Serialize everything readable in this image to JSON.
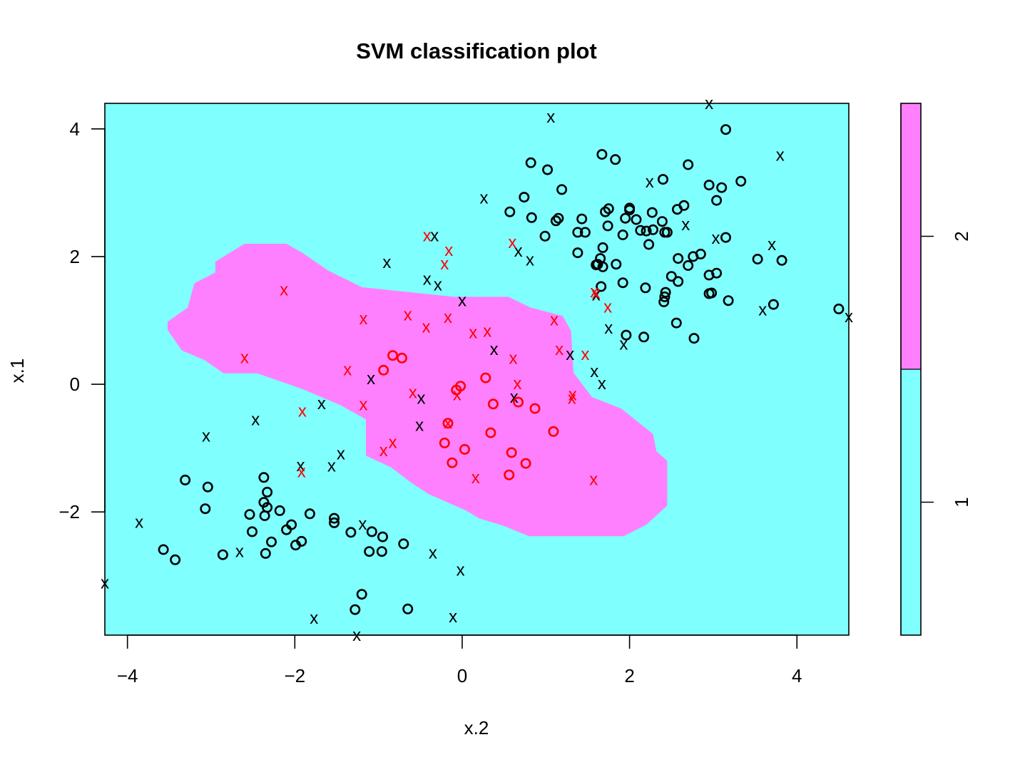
{
  "chart_data": {
    "type": "scatter",
    "title": "SVM classification plot",
    "xlabel": "x.2",
    "ylabel": "x.1",
    "xlim": [
      -4.27,
      4.62
    ],
    "ylim": [
      -3.93,
      4.4
    ],
    "x_ticks": [
      -4,
      -2,
      0,
      2,
      4
    ],
    "y_ticks": [
      -2,
      0,
      2,
      4
    ],
    "x_tick_labels": [
      "−4",
      "−2",
      "0",
      "2",
      "4"
    ],
    "y_tick_labels": [
      "−2",
      "0",
      "2",
      "4"
    ],
    "colors": {
      "class_1_region": "#80FFFF",
      "class_2_region": "#FF80FF",
      "points_class_1": "#000000",
      "points_class_2": "#FF0000"
    },
    "colorbar": {
      "levels": [
        "1",
        "2"
      ],
      "split_fraction": 0.5
    },
    "region_class_2_polygon": [
      [
        -2.6,
        2.2
      ],
      [
        -2.1,
        2.2
      ],
      [
        -1.9,
        2.05
      ],
      [
        -1.6,
        1.78
      ],
      [
        -1.2,
        1.52
      ],
      [
        -0.1,
        1.37
      ],
      [
        0.55,
        1.37
      ],
      [
        0.82,
        1.2
      ],
      [
        1.2,
        1.07
      ],
      [
        1.3,
        0.84
      ],
      [
        1.33,
        0.18
      ],
      [
        1.55,
        -0.2
      ],
      [
        1.9,
        -0.38
      ],
      [
        2.28,
        -0.78
      ],
      [
        2.32,
        -1.05
      ],
      [
        2.45,
        -1.2
      ],
      [
        2.45,
        -1.9
      ],
      [
        2.2,
        -2.2
      ],
      [
        1.93,
        -2.38
      ],
      [
        0.8,
        -2.38
      ],
      [
        0.5,
        -2.22
      ],
      [
        0.2,
        -2.1
      ],
      [
        0.05,
        -1.98
      ],
      [
        -0.4,
        -1.72
      ],
      [
        -0.6,
        -1.55
      ],
      [
        -0.85,
        -1.3
      ],
      [
        -1.15,
        -1.12
      ],
      [
        -1.15,
        -0.55
      ],
      [
        -1.45,
        -0.33
      ],
      [
        -1.9,
        -0.08
      ],
      [
        -2.2,
        0.06
      ],
      [
        -2.45,
        0.17
      ],
      [
        -2.85,
        0.17
      ],
      [
        -3.08,
        0.38
      ],
      [
        -3.35,
        0.53
      ],
      [
        -3.52,
        0.85
      ],
      [
        -3.52,
        0.98
      ],
      [
        -3.28,
        1.2
      ],
      [
        -3.2,
        1.58
      ],
      [
        -2.95,
        1.75
      ],
      [
        -2.95,
        1.92
      ]
    ],
    "series": [
      {
        "name": "1",
        "points_o": [
          [
            0.82,
            3.47
          ],
          [
            1.02,
            3.36
          ],
          [
            1.67,
            3.6
          ],
          [
            1.83,
            3.52
          ],
          [
            2.4,
            3.21
          ],
          [
            2.7,
            3.44
          ],
          [
            3.15,
            3.99
          ],
          [
            0.74,
            2.93
          ],
          [
            1.19,
            3.05
          ],
          [
            0.57,
            2.7
          ],
          [
            0.83,
            2.61
          ],
          [
            1.12,
            2.56
          ],
          [
            1.15,
            2.6
          ],
          [
            1.38,
            2.38
          ],
          [
            1.43,
            2.59
          ],
          [
            1.47,
            2.38
          ],
          [
            1.75,
            2.75
          ],
          [
            1.74,
            2.48
          ],
          [
            1.95,
            2.6
          ],
          [
            2.0,
            2.73
          ],
          [
            2.0,
            2.76
          ],
          [
            2.08,
            2.58
          ],
          [
            2.13,
            2.41
          ],
          [
            2.27,
            2.69
          ],
          [
            2.28,
            2.42
          ],
          [
            2.2,
            2.4
          ],
          [
            2.23,
            2.19
          ],
          [
            2.39,
            2.55
          ],
          [
            2.42,
            2.38
          ],
          [
            2.45,
            2.38
          ],
          [
            2.57,
            2.74
          ],
          [
            2.65,
            2.8
          ],
          [
            2.95,
            3.12
          ],
          [
            3.04,
            2.88
          ],
          [
            3.1,
            3.08
          ],
          [
            3.33,
            3.18
          ],
          [
            3.15,
            2.3
          ],
          [
            0.99,
            2.32
          ],
          [
            1.71,
            2.7
          ],
          [
            1.38,
            2.06
          ],
          [
            1.68,
            2.14
          ],
          [
            1.65,
            1.97
          ],
          [
            1.62,
            1.88
          ],
          [
            1.6,
            1.87
          ],
          [
            1.68,
            1.84
          ],
          [
            1.84,
            1.88
          ],
          [
            1.66,
            1.53
          ],
          [
            1.92,
            1.59
          ],
          [
            1.92,
            2.34
          ],
          [
            2.58,
            1.97
          ],
          [
            2.76,
            2.0
          ],
          [
            2.85,
            2.04
          ],
          [
            2.7,
            1.86
          ],
          [
            2.5,
            1.69
          ],
          [
            2.58,
            1.61
          ],
          [
            2.95,
            1.71
          ],
          [
            3.04,
            1.74
          ],
          [
            2.19,
            1.51
          ],
          [
            2.43,
            1.44
          ],
          [
            2.42,
            1.37
          ],
          [
            2.41,
            1.29
          ],
          [
            2.95,
            1.42
          ],
          [
            2.98,
            1.43
          ],
          [
            3.18,
            1.31
          ],
          [
            3.53,
            1.96
          ],
          [
            3.82,
            1.94
          ],
          [
            3.72,
            1.25
          ],
          [
            4.5,
            1.18
          ],
          [
            1.96,
            0.77
          ],
          [
            2.17,
            0.74
          ],
          [
            2.56,
            0.96
          ],
          [
            2.77,
            0.72
          ],
          [
            -3.31,
            -1.5
          ],
          [
            -3.04,
            -1.61
          ],
          [
            -3.07,
            -1.95
          ],
          [
            -2.37,
            -1.46
          ],
          [
            -2.33,
            -1.69
          ],
          [
            -2.37,
            -1.85
          ],
          [
            -2.33,
            -1.93
          ],
          [
            -2.18,
            -1.98
          ],
          [
            -2.36,
            -2.06
          ],
          [
            -2.54,
            -2.04
          ],
          [
            -2.51,
            -2.31
          ],
          [
            -2.28,
            -2.47
          ],
          [
            -2.35,
            -2.65
          ],
          [
            -2.04,
            -2.2
          ],
          [
            -2.1,
            -2.28
          ],
          [
            -1.82,
            -2.03
          ],
          [
            -1.53,
            -2.1
          ],
          [
            -1.53,
            -2.17
          ],
          [
            -1.92,
            -2.46
          ],
          [
            -1.99,
            -2.52
          ],
          [
            -2.86,
            -2.67
          ],
          [
            -3.57,
            -2.59
          ],
          [
            -3.43,
            -2.75
          ],
          [
            -1.33,
            -2.32
          ],
          [
            -1.08,
            -2.31
          ],
          [
            -0.95,
            -2.39
          ],
          [
            -0.7,
            -2.5
          ],
          [
            -1.11,
            -2.62
          ],
          [
            -0.96,
            -2.62
          ],
          [
            -1.2,
            -3.29
          ],
          [
            -1.28,
            -3.53
          ],
          [
            -0.65,
            -3.52
          ]
        ],
        "points_x": [
          [
            1.06,
            4.19
          ],
          [
            2.95,
            4.4
          ],
          [
            3.8,
            3.59
          ],
          [
            0.26,
            2.92
          ],
          [
            2.24,
            3.17
          ],
          [
            -0.33,
            2.33
          ],
          [
            -0.9,
            1.91
          ],
          [
            0.67,
            2.09
          ],
          [
            0.81,
            1.95
          ],
          [
            -0.42,
            1.65
          ],
          [
            -0.29,
            1.56
          ],
          [
            0.0,
            1.31
          ],
          [
            2.67,
            2.5
          ],
          [
            3.03,
            2.29
          ],
          [
            3.7,
            2.19
          ],
          [
            3.59,
            1.17
          ],
          [
            4.62,
            1.06
          ],
          [
            1.6,
            1.4
          ],
          [
            1.75,
            0.88
          ],
          [
            1.93,
            0.63
          ],
          [
            0.38,
            0.55
          ],
          [
            1.29,
            0.47
          ],
          [
            1.58,
            0.2
          ],
          [
            1.67,
            0.01
          ],
          [
            -1.09,
            0.09
          ],
          [
            -0.49,
            -0.22
          ],
          [
            0.62,
            -0.2
          ],
          [
            -1.68,
            -0.3
          ],
          [
            -2.47,
            -0.55
          ],
          [
            -3.06,
            -0.81
          ],
          [
            -0.51,
            -0.64
          ],
          [
            -1.45,
            -1.09
          ],
          [
            -1.56,
            -1.28
          ],
          [
            -1.93,
            -1.27
          ],
          [
            -3.86,
            -2.16
          ],
          [
            -2.66,
            -2.62
          ],
          [
            -1.19,
            -2.19
          ],
          [
            -0.35,
            -2.64
          ],
          [
            -0.02,
            -2.91
          ],
          [
            -4.27,
            -3.11
          ],
          [
            -1.77,
            -3.66
          ],
          [
            -0.11,
            -3.64
          ],
          [
            -1.26,
            -3.93
          ]
        ]
      },
      {
        "name": "2",
        "points_o": [
          [
            -0.83,
            0.45
          ],
          [
            -0.72,
            0.41
          ],
          [
            -0.94,
            0.22
          ],
          [
            -0.07,
            -0.09
          ],
          [
            -0.02,
            -0.03
          ],
          [
            0.28,
            0.1
          ],
          [
            0.67,
            -0.28
          ],
          [
            0.37,
            -0.31
          ],
          [
            0.87,
            -0.38
          ],
          [
            -0.17,
            -0.61
          ],
          [
            0.34,
            -0.76
          ],
          [
            1.09,
            -0.74
          ],
          [
            -0.21,
            -0.92
          ],
          [
            0.03,
            -1.02
          ],
          [
            0.59,
            -1.07
          ],
          [
            -0.12,
            -1.23
          ],
          [
            0.76,
            -1.24
          ],
          [
            0.56,
            -1.42
          ]
        ],
        "points_x": [
          [
            -0.42,
            2.33
          ],
          [
            -0.16,
            2.1
          ],
          [
            -0.21,
            1.89
          ],
          [
            0.6,
            2.22
          ],
          [
            -2.13,
            1.48
          ],
          [
            -1.18,
            1.03
          ],
          [
            -0.65,
            1.09
          ],
          [
            -0.43,
            0.9
          ],
          [
            -0.17,
            1.05
          ],
          [
            0.13,
            0.81
          ],
          [
            0.3,
            0.83
          ],
          [
            1.1,
            1.01
          ],
          [
            1.58,
            1.45
          ],
          [
            1.6,
            1.43
          ],
          [
            1.74,
            1.21
          ],
          [
            1.16,
            0.55
          ],
          [
            1.47,
            0.47
          ],
          [
            0.61,
            0.41
          ],
          [
            -2.6,
            0.42
          ],
          [
            -1.37,
            0.23
          ],
          [
            -0.59,
            -0.13
          ],
          [
            0.66,
            0.01
          ],
          [
            1.32,
            -0.16
          ],
          [
            1.31,
            -0.22
          ],
          [
            -0.06,
            -0.16
          ],
          [
            -1.18,
            -0.32
          ],
          [
            -1.91,
            -0.42
          ],
          [
            -0.17,
            -0.6
          ],
          [
            -0.83,
            -0.91
          ],
          [
            -0.94,
            -1.04
          ],
          [
            -1.92,
            -1.37
          ],
          [
            0.16,
            -1.46
          ],
          [
            1.57,
            -1.49
          ]
        ]
      }
    ]
  }
}
